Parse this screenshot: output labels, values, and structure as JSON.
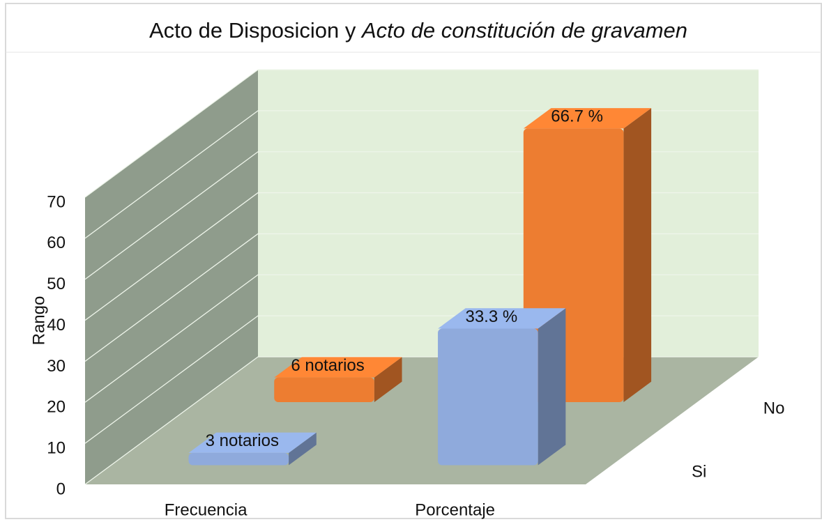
{
  "chart_data": {
    "type": "bar3d",
    "title": {
      "text": "Acto de Disposicion y",
      "emphasis": "Acto de constitución de gravamen"
    },
    "y_label": "Rango",
    "categories": [
      "Frecuencia",
      "Porcentaje"
    ],
    "series": [
      {
        "name": "Si",
        "color": "#8faadc",
        "values": [
          3,
          33.3
        ],
        "value_labels": [
          "3 notarios",
          "33.3 %"
        ]
      },
      {
        "name": "No",
        "color": "#ed7d31",
        "values": [
          6,
          66.7
        ],
        "value_labels": [
          "6 notarios",
          "66.7 %"
        ]
      }
    ],
    "ylim": [
      0,
      70
    ],
    "yticks": [
      0,
      10,
      20,
      30,
      40,
      50,
      60,
      70
    ],
    "grid": true
  }
}
